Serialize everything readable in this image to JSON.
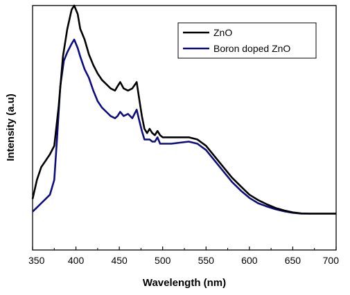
{
  "chart_data": {
    "type": "line",
    "xlabel": "Wavelength (nm)",
    "ylabel": "Intensity (a.u)",
    "xlim": [
      350,
      700
    ],
    "ylim": [
      -0.15,
      1.0
    ],
    "x_ticks": [
      "350",
      "400",
      "450",
      "500",
      "550",
      "600",
      "650",
      "700"
    ],
    "x_tick_values": [
      350,
      400,
      450,
      500,
      550,
      600,
      650,
      700
    ],
    "y_tick_labels": "none",
    "grid": false,
    "legend_position": "top-right",
    "series": [
      {
        "name": "ZnO",
        "color": "#000000",
        "points": [
          [
            350,
            0.09
          ],
          [
            355,
            0.18
          ],
          [
            360,
            0.24
          ],
          [
            365,
            0.27
          ],
          [
            370,
            0.3
          ],
          [
            375,
            0.34
          ],
          [
            380,
            0.52
          ],
          [
            385,
            0.76
          ],
          [
            390,
            0.89
          ],
          [
            395,
            0.98
          ],
          [
            398,
            1.0
          ],
          [
            402,
            0.96
          ],
          [
            405,
            0.89
          ],
          [
            410,
            0.84
          ],
          [
            415,
            0.77
          ],
          [
            420,
            0.72
          ],
          [
            425,
            0.68
          ],
          [
            430,
            0.65
          ],
          [
            435,
            0.63
          ],
          [
            440,
            0.61
          ],
          [
            445,
            0.6
          ],
          [
            448,
            0.62
          ],
          [
            451,
            0.64
          ],
          [
            455,
            0.61
          ],
          [
            460,
            0.6
          ],
          [
            465,
            0.61
          ],
          [
            470,
            0.64
          ],
          [
            473,
            0.56
          ],
          [
            476,
            0.48
          ],
          [
            479,
            0.42
          ],
          [
            482,
            0.4
          ],
          [
            485,
            0.42
          ],
          [
            488,
            0.4
          ],
          [
            491,
            0.39
          ],
          [
            494,
            0.41
          ],
          [
            497,
            0.39
          ],
          [
            500,
            0.38
          ],
          [
            510,
            0.38
          ],
          [
            520,
            0.38
          ],
          [
            530,
            0.38
          ],
          [
            540,
            0.37
          ],
          [
            550,
            0.34
          ],
          [
            560,
            0.29
          ],
          [
            570,
            0.24
          ],
          [
            580,
            0.19
          ],
          [
            590,
            0.15
          ],
          [
            600,
            0.11
          ],
          [
            610,
            0.085
          ],
          [
            620,
            0.065
          ],
          [
            630,
            0.048
          ],
          [
            640,
            0.036
          ],
          [
            650,
            0.027
          ],
          [
            660,
            0.022
          ],
          [
            670,
            0.021
          ],
          [
            680,
            0.021
          ],
          [
            690,
            0.021
          ],
          [
            700,
            0.021
          ]
        ]
      },
      {
        "name": "Boron doped ZnO",
        "color": "#0d0d80",
        "points": [
          [
            350,
            0.03
          ],
          [
            355,
            0.05
          ],
          [
            360,
            0.07
          ],
          [
            365,
            0.09
          ],
          [
            370,
            0.11
          ],
          [
            375,
            0.18
          ],
          [
            378,
            0.36
          ],
          [
            382,
            0.62
          ],
          [
            386,
            0.74
          ],
          [
            390,
            0.78
          ],
          [
            395,
            0.82
          ],
          [
            398,
            0.84
          ],
          [
            402,
            0.8
          ],
          [
            405,
            0.76
          ],
          [
            410,
            0.7
          ],
          [
            415,
            0.66
          ],
          [
            420,
            0.6
          ],
          [
            425,
            0.55
          ],
          [
            430,
            0.52
          ],
          [
            435,
            0.5
          ],
          [
            440,
            0.48
          ],
          [
            445,
            0.47
          ],
          [
            448,
            0.48
          ],
          [
            451,
            0.5
          ],
          [
            455,
            0.48
          ],
          [
            460,
            0.49
          ],
          [
            465,
            0.47
          ],
          [
            470,
            0.51
          ],
          [
            473,
            0.46
          ],
          [
            476,
            0.41
          ],
          [
            479,
            0.37
          ],
          [
            482,
            0.37
          ],
          [
            485,
            0.37
          ],
          [
            488,
            0.36
          ],
          [
            491,
            0.36
          ],
          [
            494,
            0.38
          ],
          [
            497,
            0.35
          ],
          [
            500,
            0.35
          ],
          [
            510,
            0.35
          ],
          [
            520,
            0.355
          ],
          [
            530,
            0.36
          ],
          [
            540,
            0.35
          ],
          [
            550,
            0.32
          ],
          [
            560,
            0.27
          ],
          [
            570,
            0.22
          ],
          [
            580,
            0.17
          ],
          [
            590,
            0.13
          ],
          [
            600,
            0.095
          ],
          [
            610,
            0.07
          ],
          [
            620,
            0.055
          ],
          [
            630,
            0.042
          ],
          [
            640,
            0.032
          ],
          [
            650,
            0.025
          ],
          [
            660,
            0.021
          ],
          [
            670,
            0.021
          ],
          [
            680,
            0.021
          ],
          [
            690,
            0.021
          ],
          [
            700,
            0.021
          ]
        ]
      }
    ]
  }
}
